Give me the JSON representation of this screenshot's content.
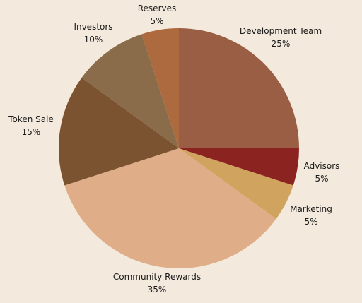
{
  "chart_data": {
    "type": "pie",
    "title": "",
    "start_angle_deg": 0,
    "direction": "clockwise",
    "legend": "none",
    "slices": [
      {
        "label": "Development Team",
        "value": 25,
        "value_label": "25%",
        "color": "#9a5e44"
      },
      {
        "label": "Advisors",
        "value": 5,
        "value_label": "5%",
        "color": "#8b2320"
      },
      {
        "label": "Marketing",
        "value": 5,
        "value_label": "5%",
        "color": "#d0a35e"
      },
      {
        "label": "Community Rewards",
        "value": 35,
        "value_label": "35%",
        "color": "#dfad87"
      },
      {
        "label": "Token Sale",
        "value": 15,
        "value_label": "15%",
        "color": "#7b5330"
      },
      {
        "label": "Investors",
        "value": 10,
        "value_label": "10%",
        "color": "#8b6c4a"
      },
      {
        "label": "Reserves",
        "value": 5,
        "value_label": "5%",
        "color": "#ad6a3e"
      }
    ]
  },
  "colors": {
    "background": "#f3e9dc",
    "label_text": "#1a1a1a"
  }
}
